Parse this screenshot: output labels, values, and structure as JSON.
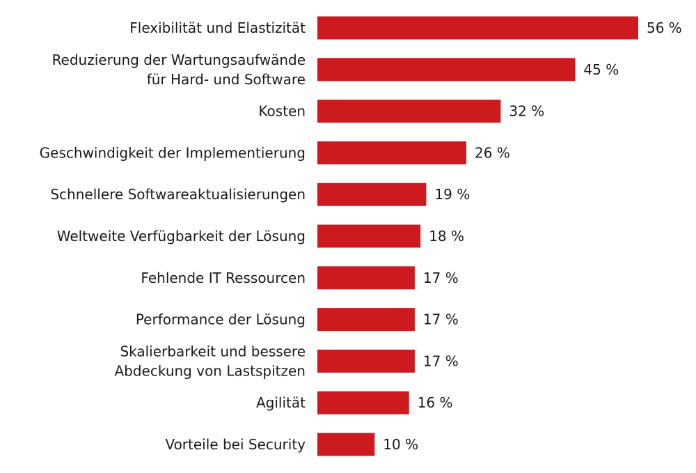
{
  "chart_data": {
    "type": "bar",
    "orientation": "horizontal",
    "title": "",
    "xlabel": "",
    "ylabel": "",
    "unit": "%",
    "xlim": [
      0,
      56
    ],
    "bar_color": "#cc1a1f",
    "categories": [
      [
        "Flexibilität und Elastizität"
      ],
      [
        "Reduzierung der Wartungsaufwände",
        "für Hard- und Software"
      ],
      [
        "Kosten"
      ],
      [
        "Geschwindigkeit der Implementierung"
      ],
      [
        "Schnellere Softwareaktualisierungen"
      ],
      [
        "Weltweite Verfügbarkeit der Lösung"
      ],
      [
        "Fehlende IT Ressourcen"
      ],
      [
        "Performance der Lösung"
      ],
      [
        "Skalierbarkeit und bessere",
        "Abdeckung von Lastspitzen"
      ],
      [
        "Agilität"
      ],
      [
        "Vorteile bei Security"
      ]
    ],
    "values": [
      56,
      45,
      32,
      26,
      19,
      18,
      17,
      17,
      17,
      16,
      10
    ],
    "value_labels": [
      "56 %",
      "45 %",
      "32 %",
      "26 %",
      "19 %",
      "18 %",
      "17 %",
      "17 %",
      "17 %",
      "16 %",
      "10 %"
    ]
  }
}
